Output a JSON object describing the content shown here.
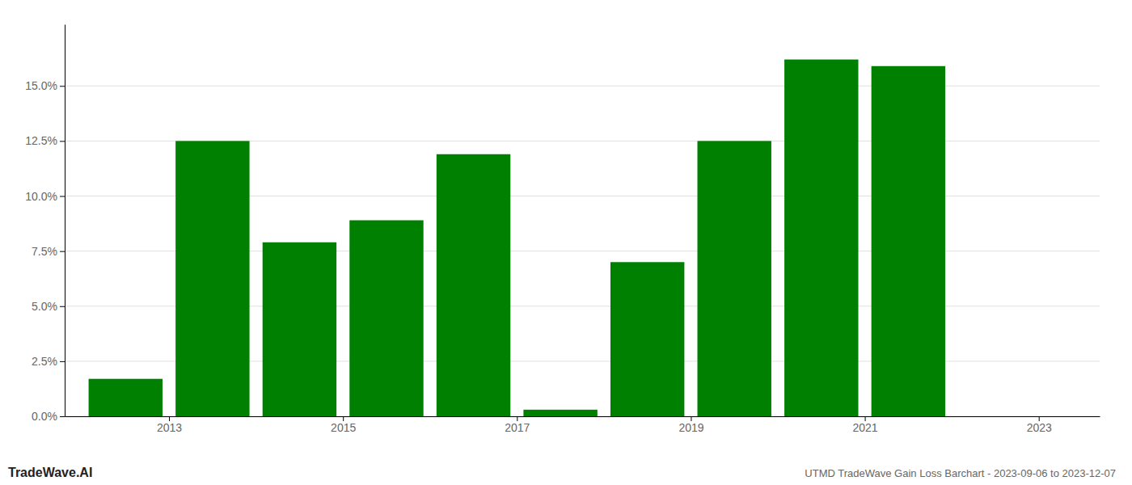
{
  "chart_data": {
    "type": "bar",
    "title": "UTMD TradeWave Gain Loss Barchart - 2023-09-06 to 2023-12-07",
    "annotations": [
      "TradeWave.AI"
    ],
    "x": [
      2013,
      2014,
      2015,
      2016,
      2017,
      2018,
      2019,
      2020,
      2021,
      2022
    ],
    "values": [
      0.017,
      0.125,
      0.079,
      0.089,
      0.119,
      0.003,
      0.07,
      0.125,
      0.162,
      0.159
    ],
    "color": "#008000",
    "xlim": [
      2012.3,
      2024.2
    ],
    "xticks": [
      {
        "value": 2013.5,
        "label": "2013"
      },
      {
        "value": 2015.5,
        "label": "2015"
      },
      {
        "value": 2017.5,
        "label": "2017"
      },
      {
        "value": 2019.5,
        "label": "2019"
      },
      {
        "value": 2021.5,
        "label": "2021"
      },
      {
        "value": 2023.5,
        "label": "2023"
      }
    ],
    "ylim": [
      0,
      0.178
    ],
    "yticks": [
      {
        "value": 0.0,
        "label": "0.0%"
      },
      {
        "value": 0.025,
        "label": "2.5%"
      },
      {
        "value": 0.05,
        "label": "5.0%"
      },
      {
        "value": 0.075,
        "label": "7.5%"
      },
      {
        "value": 0.1,
        "label": "10.0%"
      },
      {
        "value": 0.125,
        "label": "12.5%"
      },
      {
        "value": 0.15,
        "label": "15.0%"
      }
    ],
    "grid": true
  }
}
